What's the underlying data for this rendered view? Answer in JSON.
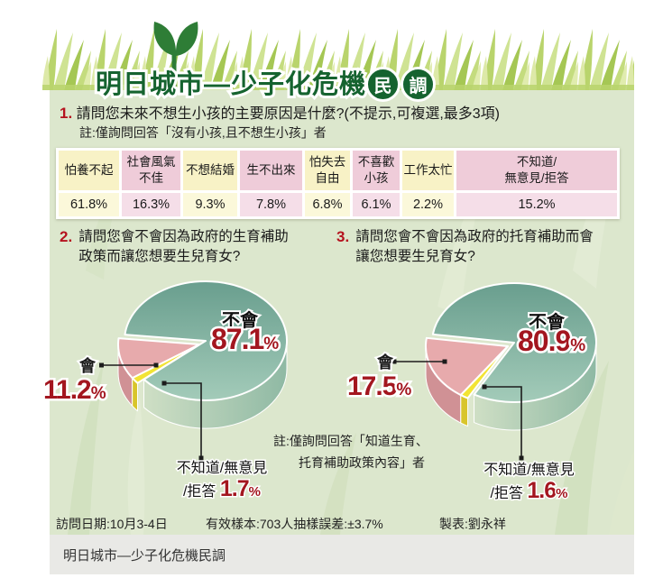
{
  "header": {
    "title": "明日城市—少子化危機",
    "badge": [
      "民",
      "調"
    ]
  },
  "questions": {
    "q1": {
      "num": "1.",
      "text": "請問您未來不想生小孩的主要原因是什麼?(不提示,可複選,最多3項)",
      "note": "註:僅詢問回答「沒有小孩,且不想生小孩」者"
    },
    "q2": {
      "num": "2.",
      "line1": "請問您會不會因為政府的生育補助",
      "line2": "政策而讓您想要生兒育女?"
    },
    "q3": {
      "num": "3.",
      "line1": "請問您會不會因為政府的托育補助而會",
      "line2": "讓您想要生兒育女?"
    }
  },
  "note2": {
    "line1": "註:僅詢問回答「知道生育、",
    "line2": "托育補助政策內容」者"
  },
  "footer": {
    "date": "訪問日期:10月3-4日",
    "sample": "有效樣本:703人抽樣誤差:±3.7%",
    "credit": "製表:劉永祥"
  },
  "caption": "明日城市—少子化危機民調",
  "shared": {
    "percent_sign": "%"
  },
  "colors": {
    "title_green": "#15632f",
    "accent_red": "#b5121e",
    "pct_red": "#a3161f",
    "panel_bg": "#dce7cd",
    "table_yellow": "#f8f2c6",
    "table_pink": "#efccd9"
  },
  "chart_data": [
    {
      "type": "table",
      "title": "未來不想生小孩的主要原因",
      "categories": [
        "怕養不起",
        "社會風氣\n不佳",
        "不想結婚",
        "生不出來",
        "怕失去\n自由",
        "不喜歡\n小孩",
        "工作太忙",
        "不知道/\n無意見/拒答"
      ],
      "values": [
        61.8,
        16.3,
        9.3,
        7.8,
        6.8,
        6.1,
        2.2,
        15.2
      ],
      "value_labels": [
        "61.8%",
        "16.3%",
        "9.3%",
        "7.8%",
        "6.8%",
        "6.1%",
        "2.2%",
        "15.2%"
      ]
    },
    {
      "type": "pie",
      "title": "會不會因為政府的生育補助政策而讓您想要生兒育女",
      "labels": {
        "no": "不會",
        "yes": "會",
        "dk_line1": "不知道/無意見",
        "dk_line2": "/拒答"
      },
      "start_angle": 174,
      "slices": [
        {
          "label": "不會",
          "value": 87.1,
          "color": "#7eb3a1",
          "color_dark": "#699e8e",
          "color_light": "#a3cbb9",
          "side_light": "#cfdfc5",
          "side_dark": "#8fb9a4"
        },
        {
          "label": "會",
          "value": 11.2,
          "color": "#e7aaac",
          "side": "#d09195"
        },
        {
          "label": "不知道/無意見/拒答",
          "value": 1.7,
          "color": "#f2e434",
          "side": "#d8c52b"
        }
      ]
    },
    {
      "type": "pie",
      "title": "會不會因為政府的托育補助而會讓您想要生兒育女",
      "labels": {
        "no": "不會",
        "yes": "會",
        "dk_line1": "不知道/無意見",
        "dk_line2": "/拒答"
      },
      "start_angle": 172,
      "slices": [
        {
          "label": "不會",
          "value": 80.9,
          "color": "#7eb3a1",
          "color_dark": "#699e8e",
          "color_light": "#a3cbb9",
          "side_light": "#cfdfc5",
          "side_dark": "#8fb9a4"
        },
        {
          "label": "會",
          "value": 17.5,
          "color": "#e7aaac",
          "side": "#d09195"
        },
        {
          "label": "不知道/無意見/拒答",
          "value": 1.6,
          "color": "#f2e434",
          "side": "#d8c52b"
        }
      ]
    }
  ]
}
